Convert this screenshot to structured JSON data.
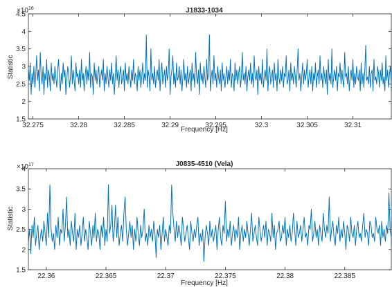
{
  "chart_data": [
    {
      "type": "line",
      "title": "J1833-1034",
      "xlabel": "Frequency [Hz]",
      "ylabel": "Statistic",
      "xlim": [
        32.2745,
        32.3142
      ],
      "ylim": [
        1.5,
        4.5
      ],
      "y_multiplier_base": "×10",
      "y_multiplier_exp": "16",
      "xticks": [
        32.275,
        32.28,
        32.285,
        32.29,
        32.295,
        32.3,
        32.305,
        32.31
      ],
      "xtick_labels": [
        "32.275",
        "32.28",
        "32.285",
        "32.29",
        "32.295",
        "32.3",
        "32.305",
        "32.31"
      ],
      "yticks": [
        1.5,
        2,
        2.5,
        3,
        3.5,
        4,
        4.5
      ],
      "ytick_labels": [
        "1.5",
        "2",
        "2.5",
        "3",
        "3.5",
        "4",
        "4.5"
      ],
      "color": "#0072BD",
      "series": [
        {
          "x_start": 32.2745,
          "x_step": 0.0001,
          "values": [
            2.9,
            2.6,
            3.1,
            2.2,
            2.8,
            2.5,
            3.0,
            2.4,
            2.7,
            3.3,
            2.6,
            2.9,
            2.3,
            3.4,
            2.7,
            2.5,
            3.0,
            2.2,
            2.8,
            2.6,
            3.2,
            2.4,
            2.9,
            2.7,
            2.3,
            3.1,
            2.6,
            2.8,
            2.5,
            3.0,
            2.7,
            2.4,
            2.9,
            3.2,
            2.6,
            2.3,
            2.8,
            2.5,
            3.1,
            2.7,
            2.9,
            2.2,
            2.6,
            3.0,
            2.8,
            2.4,
            2.7,
            3.3,
            2.5,
            2.9,
            2.6,
            2.3,
            3.1,
            2.7,
            2.8,
            2.5,
            2.9,
            2.4,
            3.2,
            2.6,
            2.8,
            2.3,
            2.7,
            3.0,
            2.5,
            2.9,
            2.6,
            3.4,
            2.4,
            2.8,
            2.7,
            2.2,
            3.1,
            2.6,
            2.9,
            2.5,
            2.8,
            3.0,
            2.4,
            2.7,
            2.9,
            2.6,
            3.2,
            2.3,
            2.8,
            2.5,
            3.0,
            2.7,
            2.4,
            2.9,
            2.6,
            3.1,
            2.5,
            2.8,
            2.2,
            2.7,
            3.3,
            2.6,
            2.9,
            2.4,
            2.8,
            3.0,
            2.5,
            2.7,
            2.9,
            2.3,
            3.1,
            2.6,
            2.8,
            2.5,
            3.0,
            2.7,
            2.4,
            2.9,
            2.6,
            3.2,
            2.5,
            2.8,
            2.7,
            2.3,
            3.0,
            2.6,
            2.9,
            2.4,
            2.7,
            3.1,
            2.5,
            2.8,
            2.6,
            3.9,
            2.4,
            2.9,
            2.7,
            2.3,
            3.5,
            2.6,
            2.8,
            2.5,
            3.0,
            2.4,
            2.7,
            2.9,
            2.6,
            3.2,
            2.3,
            2.8,
            3.1,
            2.5,
            2.7,
            2.9,
            2.4,
            3.0,
            2.6,
            2.8,
            3.5,
            2.2,
            2.7,
            2.9,
            3.3,
            2.5,
            2.8,
            2.4,
            3.1,
            2.6,
            2.7,
            3.0,
            2.5,
            2.9,
            2.3,
            2.7,
            3.2,
            2.6,
            2.8,
            2.4,
            3.0,
            2.5,
            2.7,
            2.9,
            2.3,
            3.1,
            2.6,
            2.8,
            2.4,
            3.4,
            2.7,
            2.5,
            2.9,
            2.2,
            3.1,
            2.6,
            2.8,
            2.5,
            3.0,
            2.7,
            2.4,
            3.2,
            2.6,
            2.8,
            3.9,
            2.3,
            2.7,
            2.9,
            2.5,
            3.3,
            2.6,
            2.8,
            2.4,
            3.0,
            2.7,
            2.5,
            2.9,
            2.3,
            3.1,
            2.6,
            2.8,
            2.4,
            2.7,
            3.0,
            2.5,
            2.9,
            2.6,
            3.2,
            2.4,
            2.8,
            2.7,
            2.3,
            3.1,
            2.6,
            2.9,
            2.5,
            2.8,
            3.0,
            2.4,
            2.7,
            3.4,
            2.6,
            2.8,
            2.5,
            3.0,
            2.3,
            2.7,
            2.9,
            2.6,
            3.1,
            2.5,
            2.8,
            2.4,
            3.3,
            2.7,
            2.6,
            2.9,
            2.2,
            3.0,
            2.6,
            2.8,
            2.5,
            3.2,
            2.4,
            2.7,
            2.9,
            2.6,
            3.5,
            2.3,
            2.8,
            3.0,
            2.5,
            2.7,
            2.9,
            2.4,
            3.1,
            2.6,
            2.8,
            2.3,
            3.2,
            2.7,
            2.5,
            2.9,
            2.6,
            3.0,
            2.4,
            2.8,
            2.7,
            3.3,
            2.5,
            2.6,
            2.9,
            2.3,
            3.1,
            2.6,
            2.8,
            2.5,
            3.0,
            2.7,
            2.4,
            2.9,
            3.5,
            2.6,
            2.8,
            2.3,
            2.7,
            3.1,
            2.5,
            2.9,
            2.6,
            2.8,
            3.2,
            2.4,
            2.7,
            2.9,
            2.5,
            3.0,
            2.3,
            2.8,
            2.6,
            3.1,
            2.4,
            2.7,
            2.9,
            2.5,
            3.3,
            2.6,
            2.8,
            2.4,
            3.0,
            2.7,
            2.5,
            2.9,
            2.2,
            3.2,
            2.6,
            2.8,
            2.5,
            3.5,
            2.4,
            2.7,
            2.9,
            2.6,
            3.0,
            2.3,
            2.8,
            2.7,
            3.1,
            2.5,
            2.9,
            2.6,
            2.4,
            3.4,
            2.7,
            2.8,
            2.5,
            3.0,
            2.3,
            2.7,
            2.9,
            2.6,
            3.2,
            2.4,
            2.8,
            2.5,
            3.0,
            2.7,
            2.6,
            2.9,
            2.3,
            3.1,
            2.5,
            2.8,
            2.4,
            2.9,
            3.6,
            2.6,
            2.7,
            2.5,
            3.0,
            2.4,
            2.8,
            2.9,
            2.3,
            3.2,
            2.6,
            2.7,
            2.5,
            3.0,
            2.8,
            2.4,
            2.9,
            2.6,
            3.1,
            2.5,
            2.7,
            2.3,
            3.3,
            2.6,
            2.9,
            2.4,
            2.8,
            3.0,
            2.5,
            2.7,
            2.6,
            3.5,
            2.4,
            2.8,
            2.9,
            2.3,
            3.1,
            2.6,
            2.7,
            2.5,
            2.9,
            3.0,
            2.4,
            2.8,
            2.6,
            3.2,
            2.5,
            2.7,
            2.9,
            2.3,
            3.0,
            2.6,
            2.8,
            2.4,
            3.4,
            2.7,
            2.5,
            2.9,
            2.6,
            3.1,
            2.4,
            2.8,
            2.7,
            2.3,
            3.0,
            2.5,
            2.9,
            2.6,
            2.8,
            3.3,
            2.4,
            2.7,
            2.5,
            2.9,
            2.6
          ]
        }
      ]
    },
    {
      "type": "line",
      "title": "J0835-4510 (Vela)",
      "xlabel": "Frequency [Hz]",
      "ylabel": "Statistic",
      "xlim": [
        22.3585,
        22.3889
      ],
      "ylim": [
        1.5,
        4
      ],
      "y_multiplier_base": "×10",
      "y_multiplier_exp": "17",
      "xticks": [
        22.36,
        22.365,
        22.37,
        22.375,
        22.38,
        22.385
      ],
      "xtick_labels": [
        "22.36",
        "22.365",
        "22.37",
        "22.375",
        "22.38",
        "22.385"
      ],
      "yticks": [
        1.5,
        2,
        2.5,
        3,
        3.5,
        4
      ],
      "ytick_labels": [
        "1.5",
        "2",
        "2.5",
        "3",
        "3.5",
        "4"
      ],
      "color": "#0072BD",
      "series": [
        {
          "x_start": 22.3585,
          "x_step": 0.0001,
          "values": [
            2.2,
            2.5,
            1.9,
            2.6,
            2.3,
            2.8,
            2.1,
            2.4,
            2.6,
            2.0,
            2.3,
            2.5,
            2.2,
            2.7,
            2.4,
            2.1,
            2.9,
            2.3,
            3.6,
            2.5,
            2.2,
            2.4,
            2.0,
            2.6,
            2.3,
            2.8,
            2.1,
            2.5,
            2.4,
            3.0,
            2.2,
            2.6,
            3.3,
            2.3,
            2.5,
            2.1,
            2.7,
            2.4,
            2.2,
            2.9,
            2.0,
            2.5,
            2.3,
            2.6,
            2.1,
            2.4,
            2.8,
            2.2,
            2.5,
            2.3,
            2.0,
            2.7,
            2.4,
            2.1,
            2.6,
            2.3,
            2.9,
            2.2,
            2.5,
            2.4,
            2.0,
            2.6,
            2.3,
            2.8,
            2.1,
            2.5,
            2.2,
            3.6,
            2.4,
            2.6,
            3.1,
            2.2,
            2.5,
            3.1,
            2.3,
            2.8,
            2.1,
            2.4,
            2.6,
            2.2,
            2.9,
            3.3,
            2.5,
            2.1,
            2.4,
            2.7,
            2.3,
            2.6,
            2.0,
            2.5,
            2.2,
            2.8,
            2.4,
            2.1,
            2.6,
            2.3,
            2.5,
            3.0,
            2.2,
            2.4,
            2.1,
            2.6,
            2.3,
            2.5,
            2.2,
            2.7,
            2.4,
            1.8,
            2.5,
            2.3,
            2.6,
            2.0,
            2.4,
            2.8,
            2.2,
            2.5,
            2.3,
            2.1,
            2.6,
            2.4,
            3.6,
            2.9,
            2.5,
            2.2,
            2.7,
            2.3,
            2.6,
            2.4,
            2.1,
            2.8,
            2.5,
            2.2,
            2.4,
            2.6,
            2.3,
            2.0,
            2.7,
            2.4,
            2.2,
            2.5,
            2.3,
            2.6,
            2.8,
            2.1,
            2.4,
            2.2,
            2.5,
            1.7,
            2.3,
            2.6,
            2.4,
            2.1,
            2.7,
            2.3,
            2.5,
            2.2,
            2.4,
            2.6,
            2.0,
            2.5,
            2.8,
            2.3,
            2.1,
            2.6,
            2.4,
            3.2,
            2.2,
            2.5,
            2.3,
            2.7,
            2.1,
            2.4,
            2.6,
            2.2,
            2.5,
            2.3,
            2.8,
            2.0,
            2.4,
            2.6,
            2.2,
            2.5,
            2.3,
            2.7,
            2.4,
            2.1,
            2.5,
            2.9,
            2.2,
            2.4,
            2.6,
            2.3,
            2.1,
            2.8,
            2.5,
            2.2,
            2.4,
            2.6,
            2.3,
            2.7,
            2.1,
            2.5,
            2.4,
            2.2,
            2.9,
            2.3,
            2.6,
            2.0,
            2.4,
            2.5,
            2.7,
            2.2,
            2.3,
            2.6,
            2.4,
            2.8,
            2.1,
            2.5,
            2.3,
            2.6,
            2.2,
            2.4,
            2.9,
            2.5,
            2.1,
            2.7,
            2.3,
            2.4,
            2.6,
            2.2,
            2.5,
            2.8,
            2.3,
            2.4,
            2.1,
            2.6,
            2.5,
            3.0,
            2.2,
            2.4,
            2.7,
            2.3,
            2.5,
            2.1,
            2.6,
            2.4,
            2.2,
            2.9,
            2.5,
            2.3,
            2.6,
            2.4,
            3.3,
            2.2,
            2.5,
            2.7,
            2.3,
            2.1,
            2.6,
            2.4,
            2.8,
            2.2,
            2.5,
            2.3,
            2.7,
            2.4,
            2.0,
            2.6,
            2.5,
            2.2,
            2.8,
            2.4,
            2.3,
            2.6,
            2.1,
            2.5,
            2.7,
            2.3,
            2.4,
            2.2,
            2.6,
            2.9,
            2.3,
            2.5,
            2.4,
            2.1,
            2.7,
            2.6,
            2.3,
            2.4,
            2.2,
            2.8,
            2.5,
            2.4,
            2.6,
            2.1,
            2.7,
            2.3,
            2.5,
            2.2,
            2.6,
            2.4,
            3.4,
            2.5,
            2.3,
            2.1,
            2.6,
            2.4,
            2.8,
            2.2,
            2.5,
            2.3,
            2.7,
            2.4,
            2.1
          ]
        }
      ]
    }
  ]
}
